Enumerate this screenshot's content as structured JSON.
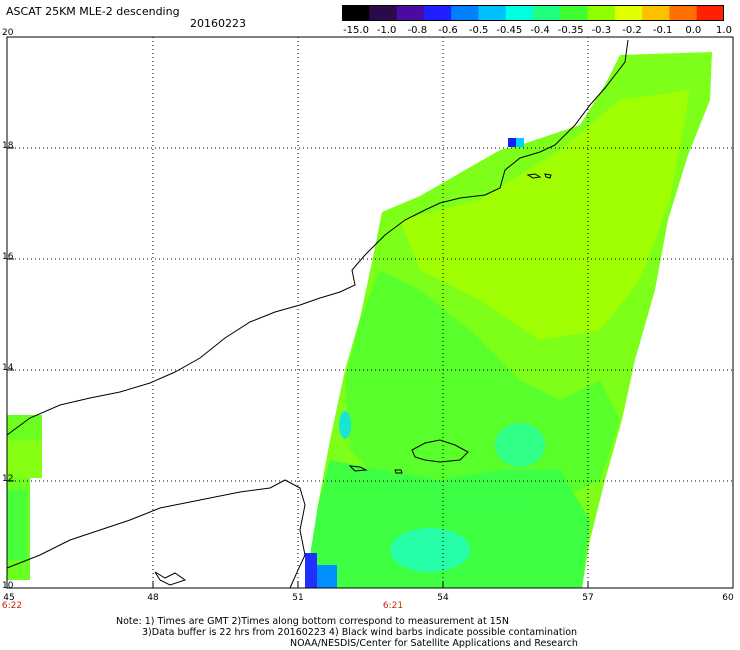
{
  "header": {
    "title": "ASCAT 25KM MLE-2 descending",
    "date": "20160223"
  },
  "colorbar": {
    "labels": [
      "-15.0",
      "-1.0",
      "-0.8",
      "-0.6",
      "-0.5",
      "-0.45",
      "-0.4",
      "-0.35",
      "-0.3",
      "-0.2",
      "-0.1",
      "0.0",
      "1.0"
    ],
    "colors": [
      "#000000",
      "#2a0a4a",
      "#4b0aa0",
      "#2020ff",
      "#0080ff",
      "#00c0ff",
      "#00ffe0",
      "#20ff80",
      "#40ff30",
      "#90ff00",
      "#e0ff00",
      "#ffc000",
      "#ff7000",
      "#ff2000"
    ]
  },
  "axes": {
    "lat_labels": [
      "20",
      "18",
      "16",
      "14",
      "12",
      "10"
    ],
    "lon_labels": [
      "45",
      "48",
      "51",
      "54",
      "57",
      "60"
    ],
    "time_labels": [
      "6:22",
      "6:21"
    ]
  },
  "notes": {
    "line1": "Note: 1) Times are GMT 2)Times along bottom correspond to measurement at 15N",
    "line2": "3)Data buffer is 22 hrs from 20160223 4) Black wind barbs indicate possible contamination",
    "line3": "NOAA/NESDIS/Center for Satellite Applications and Research"
  }
}
